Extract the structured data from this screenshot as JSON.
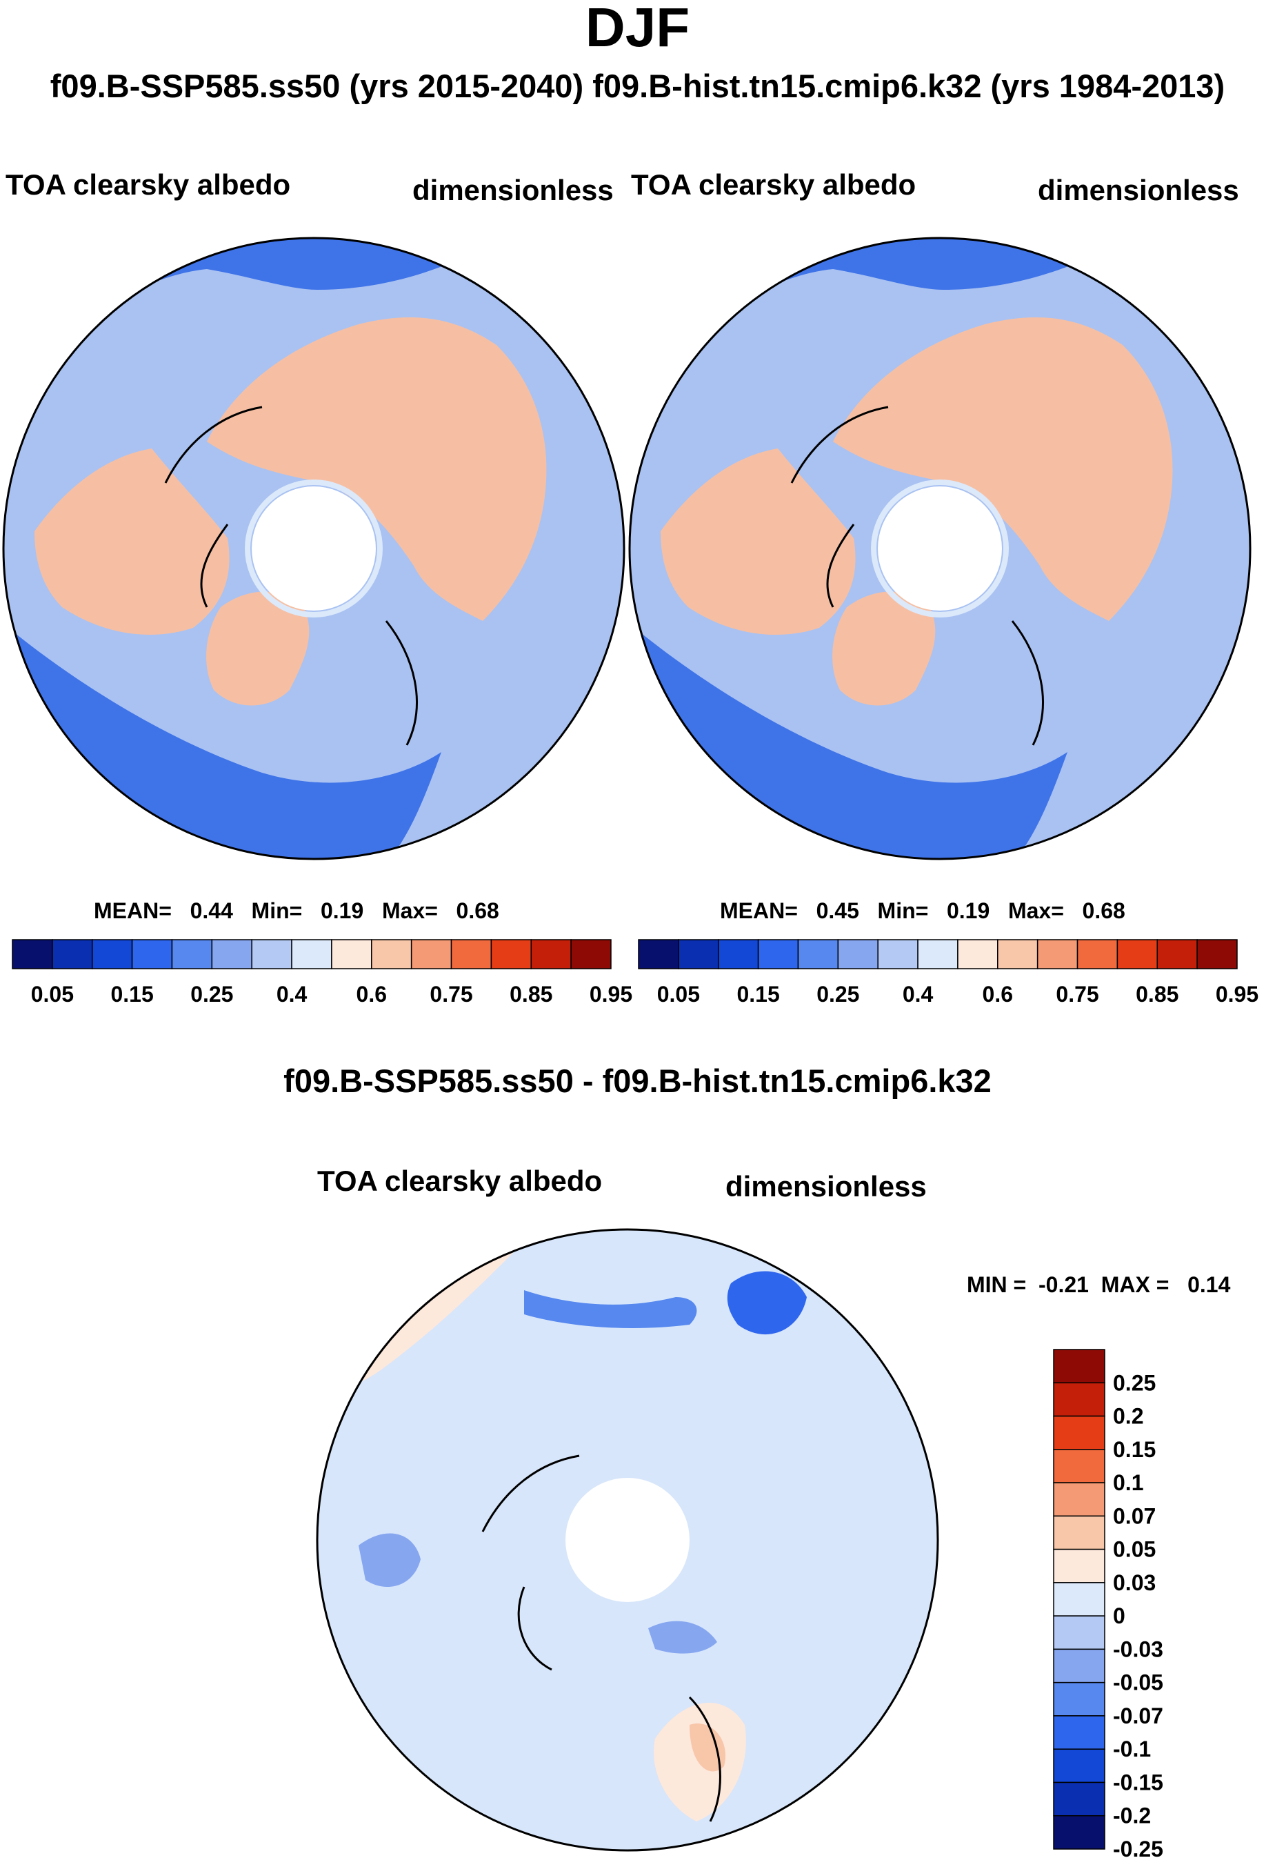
{
  "header": {
    "season": "DJF",
    "cases": "f09.B-SSP585.ss50 (yrs 2015-2040)  f09.B-hist.tn15.cmip6.k32 (yrs 1984-2013)"
  },
  "panels": [
    {
      "variable": "TOA clearsky albedo",
      "units": "dimensionless",
      "stats": {
        "mean_label": "MEAN=",
        "mean": "0.44",
        "min_label": "Min=",
        "min": "0.19",
        "max_label": "Max=",
        "max": "0.68"
      }
    },
    {
      "variable": "TOA clearsky albedo",
      "units": "dimensionless",
      "stats": {
        "mean_label": "MEAN=",
        "mean": "0.45",
        "min_label": "Min=",
        "min": "0.19",
        "max_label": "Max=",
        "max": "0.68"
      }
    }
  ],
  "diff": {
    "title": "f09.B-SSP585.ss50 - f09.B-hist.tn15.cmip6.k32",
    "variable": "TOA clearsky albedo",
    "units": "dimensionless",
    "stats": {
      "min_label": "MIN =",
      "min": "-0.21",
      "max_label": "MAX =",
      "max": "0.14"
    }
  },
  "chart_data": [
    {
      "type": "heatmap",
      "projection": "north polar stereographic",
      "title": "TOA clearsky albedo",
      "units": "dimensionless",
      "mean": 0.44,
      "min": 0.19,
      "max": 0.68,
      "colorbar_levels": [
        0.05,
        0.1,
        0.15,
        0.2,
        0.25,
        0.3,
        0.35,
        0.4,
        0.5,
        0.6,
        0.65,
        0.75,
        0.8,
        0.85,
        0.9,
        0.95
      ],
      "colorbar_tick_labels": [
        "0.05",
        "0.15",
        "0.25",
        "0.4",
        "0.6",
        "0.75",
        "0.85",
        "0.95"
      ]
    },
    {
      "type": "heatmap",
      "projection": "north polar stereographic",
      "title": "TOA clearsky albedo",
      "units": "dimensionless",
      "mean": 0.45,
      "min": 0.19,
      "max": 0.68,
      "colorbar_levels": [
        0.05,
        0.1,
        0.15,
        0.2,
        0.25,
        0.3,
        0.35,
        0.4,
        0.5,
        0.6,
        0.65,
        0.75,
        0.8,
        0.85,
        0.9,
        0.95
      ],
      "colorbar_tick_labels": [
        "0.05",
        "0.15",
        "0.25",
        "0.4",
        "0.6",
        "0.75",
        "0.85",
        "0.95"
      ]
    },
    {
      "type": "heatmap",
      "projection": "north polar stereographic",
      "title": "f09.B-SSP585.ss50 - f09.B-hist.tn15.cmip6.k32",
      "units": "dimensionless",
      "min": -0.21,
      "max": 0.14,
      "colorbar_tick_labels": [
        "0.25",
        "0.2",
        "0.15",
        "0.1",
        "0.07",
        "0.05",
        "0.03",
        "0",
        "-0.03",
        "-0.05",
        "-0.07",
        "-0.1",
        "-0.15",
        "-0.2",
        "-0.25"
      ]
    }
  ],
  "colors": {
    "abs_scale": [
      "#08106e",
      "#0a2fb0",
      "#1347d6",
      "#2f66ee",
      "#5688ef",
      "#86a6f0",
      "#b4caf4",
      "#dce9fb",
      "#fde8dc",
      "#f8c6a9",
      "#f49a74",
      "#f06a3e",
      "#e53d15",
      "#c41f08",
      "#8e0b05"
    ],
    "diff_scale": [
      "#8e0b05",
      "#c41f08",
      "#e53d15",
      "#f06a3e",
      "#f49a74",
      "#f8c6a9",
      "#fde8dc",
      "#dce9fb",
      "#b4caf4",
      "#86a6f0",
      "#5688ef",
      "#2f66ee",
      "#1347d6",
      "#0a2fb0",
      "#08106e"
    ],
    "land_ice": "#f6bfa3",
    "ocean_low": "#3f73e8",
    "ocean_mid": "#a9c2f2",
    "diff_base": "#d7e6fa"
  }
}
